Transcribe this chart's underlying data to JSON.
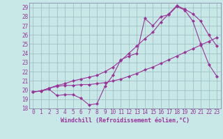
{
  "xlabel": "Windchill (Refroidissement éolien,°C)",
  "bg_color": "#c8e8e8",
  "line_color": "#993399",
  "grid_color": "#99bbbb",
  "spine_color": "#8888aa",
  "text_color": "#993399",
  "ylim": [
    18,
    29.5
  ],
  "xlim": [
    -0.5,
    23.5
  ],
  "yticks": [
    18,
    19,
    20,
    21,
    22,
    23,
    24,
    25,
    26,
    27,
    28,
    29
  ],
  "xticks": [
    0,
    1,
    2,
    3,
    4,
    5,
    6,
    7,
    8,
    9,
    10,
    11,
    12,
    13,
    14,
    15,
    16,
    17,
    18,
    19,
    20,
    21,
    22,
    23
  ],
  "line1_x": [
    0,
    1,
    2,
    3,
    4,
    5,
    6,
    7,
    8,
    9,
    10,
    11,
    12,
    13,
    14,
    15,
    16,
    17,
    18,
    19,
    20,
    21,
    22,
    23
  ],
  "line1_y": [
    19.8,
    19.9,
    20.1,
    19.4,
    19.5,
    19.5,
    19.1,
    18.4,
    18.5,
    20.4,
    21.6,
    23.3,
    23.7,
    24.0,
    27.8,
    27.0,
    28.0,
    28.2,
    29.1,
    28.7,
    27.5,
    25.0,
    22.8,
    21.5
  ],
  "line2_x": [
    0,
    1,
    2,
    3,
    4,
    5,
    6,
    7,
    8,
    9,
    10,
    11,
    12,
    13,
    14,
    15,
    16,
    17,
    18,
    19,
    20,
    21,
    22,
    23
  ],
  "line2_y": [
    19.8,
    19.9,
    20.2,
    20.4,
    20.5,
    20.5,
    20.6,
    20.6,
    20.7,
    20.8,
    21.0,
    21.2,
    21.5,
    21.8,
    22.2,
    22.5,
    22.9,
    23.3,
    23.7,
    24.1,
    24.5,
    24.9,
    25.3,
    25.7
  ],
  "line3_x": [
    0,
    1,
    2,
    3,
    4,
    5,
    6,
    7,
    8,
    9,
    10,
    11,
    12,
    13,
    14,
    15,
    16,
    17,
    18,
    19,
    20,
    21,
    22,
    23
  ],
  "line3_y": [
    19.8,
    19.9,
    20.2,
    20.5,
    20.7,
    21.0,
    21.2,
    21.4,
    21.6,
    22.0,
    22.5,
    23.2,
    24.0,
    24.8,
    25.6,
    26.3,
    27.4,
    28.3,
    29.2,
    28.8,
    28.3,
    27.5,
    26.0,
    24.8
  ],
  "tick_fontsize": 5.5,
  "xlabel_fontsize": 6.0
}
